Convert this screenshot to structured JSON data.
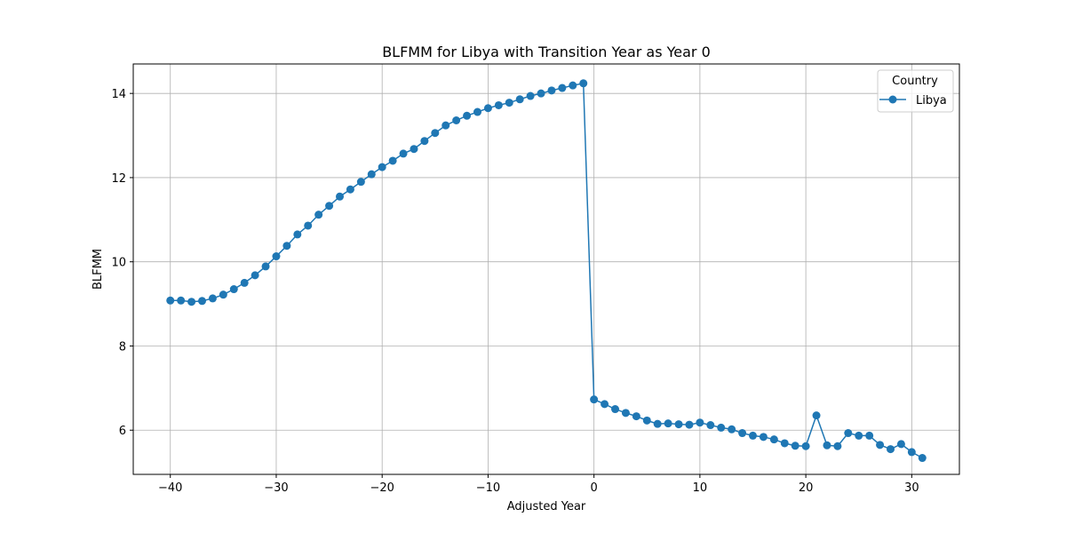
{
  "chart_data": {
    "type": "line",
    "title": "BLFMM for Libya with Transition Year as Year 0",
    "xlabel": "Adjusted Year",
    "ylabel": "BLFMM",
    "xlim": [
      -43.5,
      34.5
    ],
    "ylim": [
      4.95,
      14.7
    ],
    "xticks": [
      -40,
      -30,
      -20,
      -10,
      0,
      10,
      20,
      30
    ],
    "yticks": [
      6,
      8,
      10,
      12,
      14
    ],
    "xtick_labels": [
      "−40",
      "−30",
      "−20",
      "−10",
      "0",
      "10",
      "20",
      "30"
    ],
    "ytick_labels": [
      "6",
      "8",
      "10",
      "12",
      "14"
    ],
    "grid": true,
    "legend": {
      "title": "Country",
      "position": "top-right"
    },
    "series": [
      {
        "name": "Libya",
        "color": "#1f77b4",
        "marker": "circle",
        "x": [
          -40,
          -39,
          -38,
          -37,
          -36,
          -35,
          -34,
          -33,
          -32,
          -31,
          -30,
          -29,
          -28,
          -27,
          -26,
          -25,
          -24,
          -23,
          -22,
          -21,
          -20,
          -19,
          -18,
          -17,
          -16,
          -15,
          -14,
          -13,
          -12,
          -11,
          -10,
          -9,
          -8,
          -7,
          -6,
          -5,
          -4,
          -3,
          -2,
          -1,
          0,
          1,
          2,
          3,
          4,
          5,
          6,
          7,
          8,
          9,
          10,
          11,
          12,
          13,
          14,
          15,
          16,
          17,
          18,
          19,
          20,
          21,
          22,
          23,
          24,
          25,
          26,
          27,
          28,
          29,
          30,
          31
        ],
        "y": [
          9.08,
          9.08,
          9.05,
          9.07,
          9.13,
          9.22,
          9.35,
          9.5,
          9.68,
          9.89,
          10.13,
          10.38,
          10.65,
          10.86,
          11.12,
          11.33,
          11.55,
          11.72,
          11.9,
          12.08,
          12.25,
          12.4,
          12.57,
          12.68,
          12.87,
          13.06,
          13.24,
          13.36,
          13.47,
          13.56,
          13.65,
          13.72,
          13.78,
          13.86,
          13.94,
          14.0,
          14.07,
          14.13,
          14.19,
          14.24,
          6.73,
          6.62,
          6.5,
          6.41,
          6.33,
          6.23,
          6.15,
          6.16,
          6.14,
          6.13,
          6.18,
          6.12,
          6.06,
          6.02,
          5.93,
          5.87,
          5.84,
          5.78,
          5.69,
          5.63,
          5.62,
          6.35,
          5.64,
          5.62,
          5.93,
          5.87,
          5.87,
          5.65,
          5.55,
          5.67,
          5.48,
          5.34
        ]
      }
    ]
  }
}
